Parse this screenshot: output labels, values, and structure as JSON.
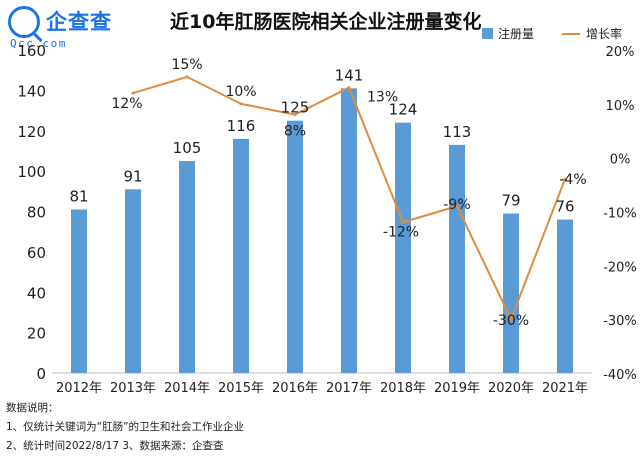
{
  "brand": {
    "name": "企查查",
    "domain": "Qcc.com",
    "color": "#1a73e8"
  },
  "chart_data": {
    "type": "bar",
    "title": "近10年肛肠医院相关企业注册量变化",
    "categories": [
      "2012年",
      "2013年",
      "2014年",
      "2015年",
      "2016年",
      "2017年",
      "2018年",
      "2019年",
      "2020年",
      "2021年"
    ],
    "series": [
      {
        "name": "注册量",
        "type": "bar",
        "axis": "left",
        "color": "#5b9bd5",
        "values": [
          81,
          91,
          105,
          116,
          125,
          141,
          124,
          113,
          79,
          76
        ],
        "labels": [
          "81",
          "91",
          "105",
          "116",
          "125",
          "141",
          "124",
          "113",
          "79",
          "76"
        ]
      },
      {
        "name": "增长率",
        "type": "line",
        "axis": "right",
        "color": "#e08b3c",
        "values": [
          null,
          12,
          15,
          10,
          8,
          13,
          -12,
          -9,
          -30,
          -4
        ],
        "labels": [
          "",
          "12%",
          "15%",
          "10%",
          "8%",
          "13%",
          "-12%",
          "-9%",
          "-30%",
          "-4%"
        ]
      }
    ],
    "y_left": {
      "min": 0,
      "max": 160,
      "ticks": [
        0,
        20,
        40,
        60,
        80,
        100,
        120,
        140,
        160
      ]
    },
    "y_right": {
      "min": -40,
      "max": 20,
      "ticks": [
        -40,
        -30,
        -20,
        -10,
        0,
        10,
        20
      ],
      "tick_labels": [
        "-40%",
        "-30%",
        "-20%",
        "-10%",
        "0%",
        "10%",
        "20%"
      ]
    },
    "grid": false,
    "legend_position": "top-right"
  },
  "notes": {
    "heading": "数据说明：",
    "line1": "1、仅统计关键词为“肛肠”的卫生和社会工作业企业",
    "line2": "2、统计时间2022/8/17   3、数据来源：企查查"
  }
}
